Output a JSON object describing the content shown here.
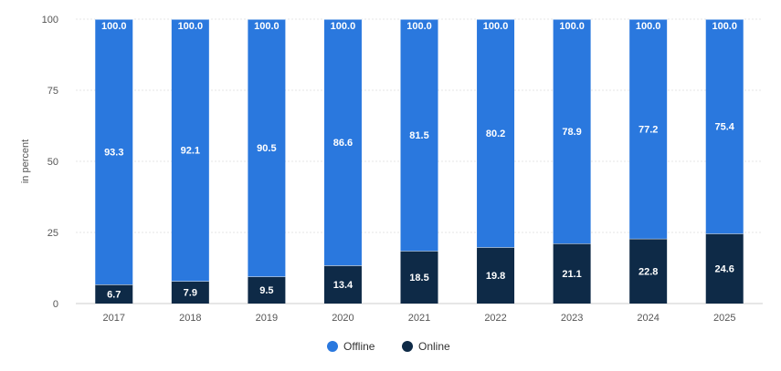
{
  "chart_data": {
    "type": "bar",
    "stacked": true,
    "title": "",
    "xlabel": "",
    "ylabel": "in percent",
    "ylim": [
      0,
      100
    ],
    "yticks": [
      0,
      25,
      50,
      75,
      100
    ],
    "grid": true,
    "legend_position": "bottom",
    "categories": [
      "2017",
      "2018",
      "2019",
      "2020",
      "2021",
      "2022",
      "2023",
      "2024",
      "2025"
    ],
    "series": [
      {
        "name": "Online",
        "color": "#0e2a47",
        "values": [
          6.7,
          7.9,
          9.5,
          13.4,
          18.5,
          19.8,
          21.1,
          22.8,
          24.6
        ]
      },
      {
        "name": "Offline",
        "color": "#2a78de",
        "values": [
          93.3,
          92.1,
          90.5,
          86.6,
          81.5,
          80.2,
          78.9,
          77.2,
          75.4
        ]
      }
    ],
    "totals": [
      "100.0",
      "100.0",
      "100.0",
      "100.0",
      "100.0",
      "100.0",
      "100.0",
      "100.0",
      "100.0"
    ],
    "legend": [
      {
        "label": "Offline",
        "color": "#2a78de"
      },
      {
        "label": "Online",
        "color": "#0e2a47"
      }
    ]
  }
}
